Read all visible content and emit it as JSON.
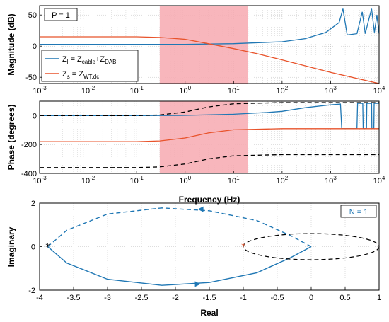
{
  "chart_data": [
    {
      "type": "line",
      "panel": "magnitude",
      "xscale": "log",
      "xlim": [
        0.001,
        10000
      ],
      "ylim": [
        -60,
        65
      ],
      "ylabel": "Magnitude (dB)",
      "yticks": [
        "50",
        "0",
        "-50"
      ],
      "xticks": [
        "10",
        "10",
        "10",
        "10",
        "10",
        "10",
        "10",
        "10"
      ],
      "xtick_exponents": [
        "-3",
        "-2",
        "-1",
        "0",
        "1",
        "2",
        "3",
        "4"
      ],
      "annotation": "P = 1",
      "highlight_band_hz": [
        0.3,
        20
      ],
      "colors": {
        "zl": "#1f77b4",
        "zs": "#e8532b",
        "band": "#f4a6ab",
        "dashed": "#000000"
      },
      "legend": {
        "zl": {
          "base": "Z",
          "sub": "l",
          "mid": " = Z",
          "sub2": "cable",
          "mid2": "+Z",
          "sub3": "DAB"
        },
        "zs": {
          "base": "Z",
          "sub": "s",
          "mid": " = Z",
          "sub2": "WT,dc"
        }
      },
      "series": [
        {
          "key": "zl",
          "x": [
            0.001,
            0.01,
            0.1,
            1,
            10,
            100,
            300,
            800,
            1500,
            1800,
            2200,
            3500,
            4500,
            5200,
            6000,
            7000,
            8000,
            9000,
            10000
          ],
          "y": [
            3,
            3,
            3,
            3,
            4,
            7,
            12,
            22,
            38,
            60,
            18,
            20,
            55,
            20,
            40,
            60,
            22,
            50,
            20
          ]
        },
        {
          "key": "zs",
          "x": [
            0.001,
            0.01,
            0.1,
            0.3,
            1,
            3,
            10,
            30,
            100,
            1000,
            10000
          ],
          "y": [
            15,
            15,
            15,
            14,
            11,
            4,
            -4,
            -12,
            -22,
            -42,
            -60
          ]
        }
      ]
    },
    {
      "type": "line",
      "panel": "phase",
      "xscale": "log",
      "xlim": [
        0.001,
        10000
      ],
      "ylim": [
        -400,
        100
      ],
      "ylabel": "Phase (degrees)",
      "xlabel": "Frequency (Hz)",
      "yticks": [
        "0",
        "-200",
        "-400"
      ],
      "xticks": [
        "10",
        "10",
        "10",
        "10",
        "10",
        "10",
        "10",
        "10"
      ],
      "xtick_exponents": [
        "-3",
        "-2",
        "-1",
        "0",
        "1",
        "2",
        "3",
        "4"
      ],
      "highlight_band_hz": [
        0.3,
        20
      ],
      "series": [
        {
          "key": "zl",
          "x": [
            0.001,
            0.1,
            1,
            10,
            50,
            100,
            300,
            1000,
            1600,
            1700,
            1800,
            3500,
            3600,
            4600,
            4700,
            5500,
            5600,
            7000,
            7100,
            7800,
            7900,
            10000
          ],
          "y": [
            0,
            0,
            2,
            10,
            22,
            30,
            55,
            75,
            80,
            -90,
            -90,
            -90,
            85,
            85,
            -90,
            -90,
            85,
            85,
            -90,
            -90,
            85,
            85
          ]
        },
        {
          "key": "zs",
          "x": [
            0.001,
            0.1,
            0.3,
            1,
            3,
            10,
            100,
            10000
          ],
          "y": [
            -180,
            -180,
            -175,
            -155,
            -120,
            -98,
            -90,
            -90
          ]
        },
        {
          "key": "dashed",
          "style": "dashed",
          "x": [
            0.001,
            0.1,
            0.3,
            1,
            3,
            10,
            100,
            10000
          ],
          "y": [
            0,
            0,
            5,
            25,
            60,
            82,
            90,
            90
          ]
        },
        {
          "key": "dashed",
          "style": "dashed",
          "x": [
            0.001,
            0.1,
            0.3,
            1,
            3,
            10,
            100,
            10000
          ],
          "y": [
            -360,
            -360,
            -355,
            -335,
            -300,
            -278,
            -270,
            -270
          ]
        }
      ]
    },
    {
      "type": "line",
      "panel": "nyquist",
      "xlim": [
        -4,
        1
      ],
      "ylim": [
        -2,
        2
      ],
      "xlabel": "Real",
      "ylabel": "Imaginary",
      "xticks": [
        "-4",
        "-3.5",
        "-3",
        "-2.5",
        "-2",
        "-1.5",
        "-1",
        "-0.5",
        "0",
        "0.5",
        "1"
      ],
      "yticks": [
        "2",
        "0",
        "-2"
      ],
      "annotation": "N = 1",
      "critical_point": [
        -1,
        0
      ],
      "start_point": [
        -3.88,
        0
      ],
      "series": [
        {
          "key": "solid_lower",
          "x": [
            0,
            -0.3,
            -0.8,
            -1.5,
            -2.2,
            -3.0,
            -3.6,
            -3.88
          ],
          "y": [
            0,
            -0.5,
            -1.2,
            -1.65,
            -1.78,
            -1.5,
            -0.75,
            0
          ]
        },
        {
          "key": "dashed_upper",
          "x": [
            0,
            -0.3,
            -0.8,
            -1.5,
            -2.2,
            -3.0,
            -3.6,
            -3.88
          ],
          "y": [
            0,
            0.5,
            1.2,
            1.65,
            1.78,
            1.5,
            0.75,
            0
          ]
        },
        {
          "key": "circle",
          "center": [
            0,
            0
          ],
          "radius_x": 1,
          "radius_y": 0.6
        }
      ]
    }
  ]
}
